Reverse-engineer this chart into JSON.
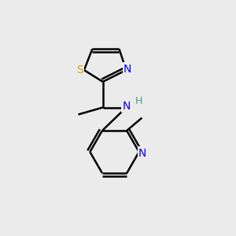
{
  "background_color": "#ebebeb",
  "atom_colors": {
    "C": "#000000",
    "N": "#0000ee",
    "S": "#ccaa00",
    "H": "#4a9a7a"
  },
  "bond_color": "#000000",
  "bond_width": 1.8,
  "figsize": [
    3.0,
    3.0
  ],
  "dpi": 100,
  "xlim": [
    0,
    10
  ],
  "ylim": [
    0,
    10
  ]
}
